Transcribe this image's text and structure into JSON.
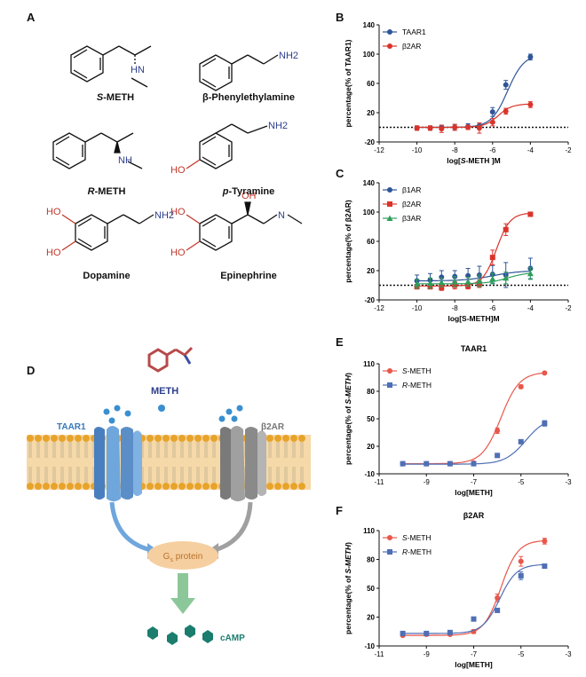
{
  "figure": {
    "panels": {
      "a": "A",
      "b": "B",
      "c": "C",
      "d": "D",
      "e": "E",
      "f": "F"
    },
    "molecules": [
      {
        "id": "s-meth",
        "prefix": "S",
        "name": "-METH",
        "prefix_italic": true,
        "amine": "HN"
      },
      {
        "id": "phenylethylamine",
        "prefix": "",
        "name": "β-Phenylethylamine",
        "amine": "NH2"
      },
      {
        "id": "r-meth",
        "prefix": "R",
        "name": "-METH",
        "prefix_italic": true,
        "amine": "NH"
      },
      {
        "id": "p-tyramine",
        "prefix": "p",
        "name": "-Tyramine",
        "prefix_italic": true,
        "amine": "NH2",
        "hydroxyl": "HO"
      },
      {
        "id": "dopamine",
        "prefix": "",
        "name": "Dopamine",
        "amine": "NH2",
        "hydroxyls": [
          "HO",
          "HO"
        ]
      },
      {
        "id": "epinephrine",
        "prefix": "",
        "name": "Epinephrine",
        "amine": "N",
        "hydroxyls": [
          "HO",
          "HO",
          "OH"
        ]
      }
    ],
    "diagram": {
      "ligand_label": "METH",
      "receptor_left": "TAAR1",
      "receptor_right": "β2AR",
      "protein_label_main": "G",
      "protein_label_sub": "s",
      "protein_label_rest": " protein",
      "product_label": "cAMP",
      "colors": {
        "taar1": "#5b8ec7",
        "b2ar": "#8a8a8a",
        "membrane": "#f6d9a8",
        "lipid": "#e8a32a",
        "gs": "#f6cfa0",
        "arrow_down": "#8cc79a",
        "camp": "#1b7d6e"
      }
    }
  },
  "chart_data": [
    {
      "id": "B",
      "type": "scatter",
      "title": "",
      "xlabel_parts": [
        {
          "t": "log["
        },
        {
          "t": "S",
          "i": true
        },
        {
          "t": "-METH ]M"
        }
      ],
      "ylabel": "percentage(% of TAAR1)",
      "xlim": [
        -12,
        -2
      ],
      "ylim": [
        -20,
        140
      ],
      "xticks": [
        -12,
        -10,
        -8,
        -6,
        -4,
        -2
      ],
      "yticks": [
        -20,
        20,
        60,
        100,
        140
      ],
      "baseline": 0,
      "legend_position": "top-left",
      "series": [
        {
          "name": "TAAR1",
          "color": "#2f5597",
          "marker": "circle",
          "x": [
            -10,
            -9.3,
            -8.7,
            -8,
            -7.3,
            -6.7,
            -6,
            -5.3,
            -4
          ],
          "y": [
            -1,
            -1,
            0,
            0,
            1,
            2,
            21,
            58,
            96
          ],
          "err": [
            3,
            3,
            3,
            4,
            4,
            4,
            6,
            6,
            4
          ],
          "fit": {
            "bottom": 0,
            "top": 100,
            "ec50": -5.2,
            "hill": 1
          }
        },
        {
          "name": "β2AR",
          "color": "#d9342b",
          "marker": "circle",
          "x": [
            -10,
            -9.3,
            -8.7,
            -8,
            -7.3,
            -6.7,
            -6,
            -5.3,
            -4
          ],
          "y": [
            -1,
            -1,
            -2,
            0,
            0,
            -1,
            7,
            22,
            31
          ],
          "err": [
            3,
            3,
            5,
            4,
            3,
            7,
            5,
            4,
            4
          ],
          "fit": {
            "bottom": 0,
            "top": 32,
            "ec50": -5.7,
            "hill": 1.2
          }
        }
      ]
    },
    {
      "id": "C",
      "type": "scatter",
      "title": "",
      "xlabel_parts": [
        {
          "t": "log[S-METH]M"
        }
      ],
      "ylabel": "percentage(% of β2AR)",
      "xlim": [
        -12,
        -2
      ],
      "ylim": [
        -20,
        140
      ],
      "xticks": [
        -12,
        -10,
        -8,
        -6,
        -4,
        -2
      ],
      "yticks": [
        -20,
        20,
        60,
        100,
        140
      ],
      "baseline": 0,
      "legend_position": "top-left",
      "series": [
        {
          "name": "β1AR",
          "color": "#2f5597",
          "marker": "circle",
          "x": [
            -10,
            -9.3,
            -8.7,
            -8,
            -7.3,
            -6.7,
            -6,
            -5.3,
            -4
          ],
          "y": [
            6,
            7,
            11,
            12,
            13,
            14,
            15,
            14,
            23
          ],
          "err": [
            8,
            9,
            9,
            8,
            10,
            12,
            12,
            17,
            14
          ],
          "fit": {
            "bottom": 6,
            "top": 20,
            "ec50": -6,
            "hill": 0.6
          }
        },
        {
          "name": "β2AR",
          "color": "#d9342b",
          "marker": "square",
          "x": [
            -10,
            -9.3,
            -8.7,
            -8,
            -7.3,
            -6.7,
            -6,
            -5.3,
            -4
          ],
          "y": [
            -2,
            -2,
            -3,
            0,
            -1,
            2,
            38,
            76,
            97
          ],
          "err": [
            3,
            3,
            4,
            5,
            4,
            5,
            10,
            8,
            3
          ],
          "fit": {
            "bottom": -1,
            "top": 99,
            "ec50": -5.8,
            "hill": 1.2
          }
        },
        {
          "name": "β3AR",
          "color": "#2e9e5b",
          "marker": "triangle",
          "x": [
            -10,
            -9.3,
            -8.7,
            -8,
            -7.3,
            -6.7,
            -6,
            -5.3,
            -4
          ],
          "y": [
            2,
            3,
            4,
            5,
            5,
            6,
            9,
            10,
            16
          ],
          "err": [
            6,
            7,
            6,
            7,
            6,
            8,
            7,
            8,
            8
          ],
          "fit": {
            "bottom": 2,
            "top": 18,
            "ec50": -5.2,
            "hill": 0.8
          }
        }
      ]
    },
    {
      "id": "E",
      "type": "scatter",
      "title": "TAAR1",
      "xlabel_parts": [
        {
          "t": "log[METH]"
        }
      ],
      "ylabel_parts": [
        {
          "t": "percentage(% of "
        },
        {
          "t": "S-METH",
          "i": true
        },
        {
          "t": ")"
        }
      ],
      "xlim": [
        -11,
        -3
      ],
      "ylim": [
        -10,
        110
      ],
      "xticks": [
        -11,
        -9,
        -7,
        -5,
        -3
      ],
      "yticks": [
        -10,
        20,
        50,
        80,
        110
      ],
      "legend_position": "top-left",
      "series": [
        {
          "name": "S-METH",
          "color": "#e8574a",
          "marker": "circle",
          "x": [
            -10,
            -9,
            -8,
            -7,
            -6,
            -5,
            -4
          ],
          "y": [
            1,
            1,
            1,
            2,
            37,
            85,
            100
          ],
          "err": [
            1,
            1,
            1,
            1,
            3,
            2,
            1
          ],
          "fit": {
            "bottom": 1,
            "top": 101,
            "ec50": -5.85,
            "hill": 1.1
          }
        },
        {
          "name": "R-METH",
          "color": "#4f6fb5",
          "marker": "square",
          "x": [
            -10,
            -9,
            -8,
            -7,
            -6,
            -5,
            -4
          ],
          "y": [
            1,
            1,
            1,
            1,
            10,
            25,
            45
          ],
          "err": [
            1,
            1,
            1,
            1,
            2,
            2,
            3
          ],
          "fit": {
            "bottom": 0.5,
            "top": 52,
            "ec50": -4.8,
            "hill": 1
          }
        }
      ]
    },
    {
      "id": "F",
      "type": "scatter",
      "title": "β2AR",
      "xlabel_parts": [
        {
          "t": "log[METH]"
        }
      ],
      "ylabel_parts": [
        {
          "t": "percentage(% of "
        },
        {
          "t": "S-METH",
          "i": true
        },
        {
          "t": ")"
        }
      ],
      "xlim": [
        -11,
        -3
      ],
      "ylim": [
        -10,
        110
      ],
      "xticks": [
        -11,
        -9,
        -7,
        -5,
        -3
      ],
      "yticks": [
        -10,
        20,
        50,
        80,
        110
      ],
      "legend_position": "top-left",
      "series": [
        {
          "name": "S-METH",
          "color": "#e8574a",
          "marker": "circle",
          "x": [
            -10,
            -9,
            -8,
            -7,
            -6,
            -5,
            -4
          ],
          "y": [
            1,
            2,
            2,
            5,
            40,
            78,
            99
          ],
          "err": [
            1,
            1,
            1,
            2,
            4,
            5,
            3
          ],
          "fit": {
            "bottom": 1,
            "top": 100,
            "ec50": -5.85,
            "hill": 1.2
          }
        },
        {
          "name": "R-METH",
          "color": "#4f6fb5",
          "marker": "square",
          "x": [
            -10,
            -9,
            -8,
            -7,
            -6,
            -5,
            -4
          ],
          "y": [
            3,
            3,
            4,
            18,
            27,
            63,
            73
          ],
          "err": [
            1,
            1,
            1,
            2,
            2,
            4,
            2
          ],
          "fit": {
            "bottom": 3,
            "top": 75,
            "ec50": -5.9,
            "hill": 1.2
          }
        }
      ]
    }
  ]
}
